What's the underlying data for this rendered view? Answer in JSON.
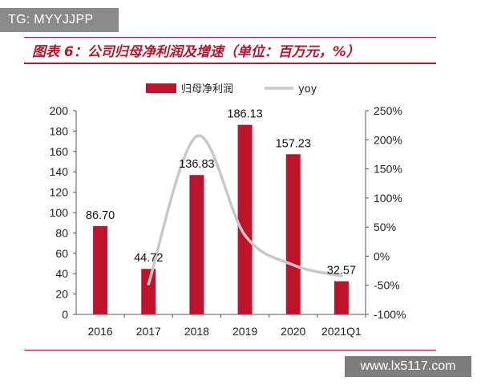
{
  "watermarks": {
    "top_left": "TG: MYYJJPP",
    "bottom_right": "www.lx5117.com"
  },
  "colors": {
    "bar": "#c0132b",
    "line": "#c8c8c8",
    "accent": "#c0132b"
  },
  "chart_data": {
    "type": "bar",
    "title": "图表 6：公司归母净利润及增速（单位：百万元，%）",
    "categories": [
      "2016",
      "2017",
      "2018",
      "2019",
      "2020",
      "2021Q1"
    ],
    "series": [
      {
        "name": "归母净利润",
        "type": "bar",
        "axis": "left",
        "values": [
          86.7,
          44.72,
          136.83,
          186.13,
          157.23,
          32.57
        ],
        "labels": [
          "86.70",
          "44.72",
          "136.83",
          "186.13",
          "157.23",
          "32.57"
        ]
      },
      {
        "name": "yoy",
        "type": "line",
        "axis": "right",
        "values": [
          null,
          -48,
          206,
          36,
          -15,
          -34
        ]
      }
    ],
    "ylim_left": [
      0,
      200
    ],
    "ylim_right": [
      -100,
      250
    ],
    "yticks_left": [
      "0",
      "20",
      "40",
      "60",
      "80",
      "100",
      "120",
      "140",
      "160",
      "180",
      "200"
    ],
    "yticks_right": [
      "-100%",
      "-50%",
      "0%",
      "50%",
      "100%",
      "150%",
      "200%",
      "250%"
    ],
    "legend_position": "top",
    "grid": false
  }
}
